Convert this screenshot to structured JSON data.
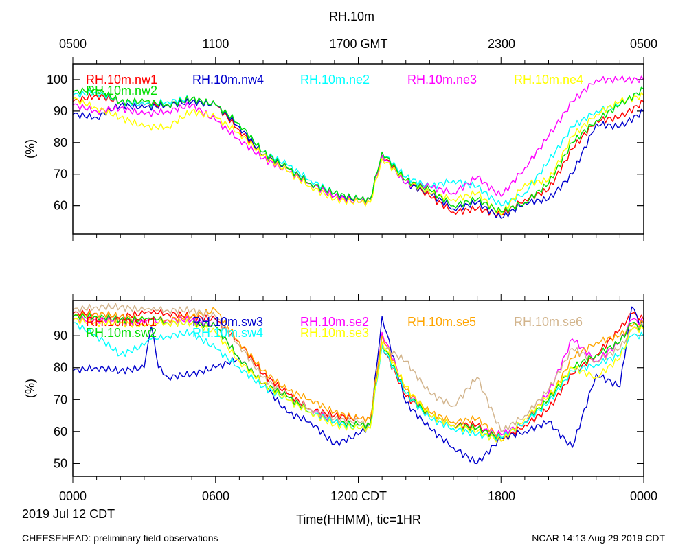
{
  "title": "RH.10m",
  "top_axis": {
    "labels": [
      "0500",
      "1100",
      "1700 GMT",
      "2300",
      "0500"
    ]
  },
  "bottom_axis": {
    "labels": [
      "0000",
      "0600",
      "1200 CDT",
      "1800",
      "0000"
    ]
  },
  "date_label": "2019 Jul 12 CDT",
  "xlabel": "Time(HHMM), tic=1HR",
  "footer_left": "CHEESEHEAD: preliminary field observations",
  "footer_right": "NCAR 14:13 Aug 29 2019 CDT",
  "chart_data": [
    {
      "type": "line",
      "ylabel": "(%)",
      "ylim": [
        51,
        105
      ],
      "yticks": [
        60,
        70,
        80,
        90,
        100
      ],
      "xlim": [
        0,
        24
      ],
      "x": [
        0,
        1,
        2,
        3,
        4,
        5,
        6,
        7,
        8,
        9,
        10,
        11,
        12,
        12.5,
        13,
        14,
        15,
        16,
        17,
        18,
        19,
        20,
        21,
        22,
        23,
        24
      ],
      "series": [
        {
          "name": "RH.10m.nw1",
          "color": "#ff0000",
          "values": [
            93,
            95,
            93,
            92,
            92,
            94,
            92,
            84,
            76,
            72,
            67,
            63,
            62,
            62,
            76,
            68,
            63,
            58,
            59,
            57,
            62,
            65,
            78,
            87,
            88,
            93
          ]
        },
        {
          "name": "RH.10m.nw4",
          "color": "#0000cd",
          "values": [
            89,
            88,
            92,
            91,
            92,
            93,
            92,
            85,
            76,
            72,
            67,
            63,
            62,
            62,
            76,
            67,
            64,
            59,
            61,
            56,
            61,
            62,
            70,
            86,
            85,
            90
          ]
        },
        {
          "name": "RH.10m.ne2",
          "color": "#00ffff",
          "values": [
            95,
            96,
            93,
            92,
            93,
            94,
            92,
            86,
            77,
            73,
            68,
            64,
            62,
            62,
            77,
            69,
            66,
            68,
            66,
            60,
            64,
            74,
            85,
            90,
            92,
            97
          ]
        },
        {
          "name": "RH.10m.ne3",
          "color": "#ff00ff",
          "values": [
            92,
            90,
            91,
            89,
            90,
            92,
            87,
            81,
            75,
            71,
            67,
            63,
            61,
            62,
            76,
            67,
            66,
            64,
            69,
            63,
            72,
            82,
            93,
            100,
            100,
            100
          ]
        },
        {
          "name": "RH.10m.ne4",
          "color": "#ffff00",
          "values": [
            94,
            91,
            88,
            85,
            85,
            90,
            88,
            83,
            76,
            71,
            66,
            62,
            61,
            61,
            75,
            68,
            64,
            62,
            64,
            57,
            67,
            68,
            82,
            89,
            93,
            95
          ]
        },
        {
          "name": "RH.10m.nw2",
          "color": "#00dd00",
          "values": [
            96,
            97,
            93,
            93,
            92,
            94,
            92,
            86,
            77,
            72,
            67,
            64,
            62,
            62,
            77,
            68,
            65,
            60,
            62,
            58,
            61,
            67,
            80,
            87,
            92,
            97
          ]
        }
      ]
    },
    {
      "type": "line",
      "ylabel": "(%)",
      "ylim": [
        46,
        101
      ],
      "yticks": [
        50,
        60,
        70,
        80,
        90
      ],
      "xlim": [
        0,
        24
      ],
      "x": [
        0,
        1,
        2,
        3,
        3.3,
        3.6,
        4,
        5,
        6,
        7,
        8,
        9,
        10,
        11,
        12,
        12.5,
        13,
        14,
        15,
        16,
        17,
        18,
        19,
        20,
        21,
        22,
        23,
        23.5,
        24
      ],
      "series": [
        {
          "name": "RH.10m.sw1",
          "color": "#ff0000",
          "values": [
            97,
            97,
            96,
            97,
            97,
            97,
            97,
            96,
            95,
            88,
            78,
            72,
            67,
            65,
            64,
            64,
            87,
            71,
            65,
            62,
            62,
            57,
            62,
            67,
            78,
            84,
            92,
            97,
            95
          ]
        },
        {
          "name": "RH.10m.sw3",
          "color": "#0000cd",
          "values": [
            79,
            80,
            79,
            80,
            93,
            80,
            77,
            78,
            80,
            83,
            75,
            66,
            63,
            56,
            59,
            62,
            96,
            69,
            61,
            55,
            50,
            58,
            60,
            63,
            55,
            78,
            74,
            99,
            92
          ]
        },
        {
          "name": "RH.10m.se2",
          "color": "#ff00ff",
          "values": [
            95,
            95,
            95,
            94,
            95,
            94,
            95,
            95,
            93,
            83,
            75,
            71,
            67,
            63,
            62,
            62,
            91,
            73,
            65,
            62,
            61,
            59,
            63,
            72,
            89,
            82,
            88,
            95,
            94
          ]
        },
        {
          "name": "RH.10m.se5",
          "color": "#ffa500",
          "values": [
            96,
            97,
            96,
            95,
            95,
            95,
            95,
            96,
            98,
            88,
            79,
            73,
            70,
            66,
            64,
            64,
            90,
            73,
            66,
            63,
            64,
            58,
            63,
            70,
            83,
            88,
            90,
            93,
            94
          ]
        },
        {
          "name": "RH.10m.se6",
          "color": "#d2b48c",
          "values": [
            98,
            99,
            99,
            98,
            98,
            98,
            98,
            98,
            96,
            87,
            77,
            71,
            67,
            64,
            63,
            62,
            87,
            82,
            72,
            68,
            77,
            60,
            65,
            73,
            86,
            82,
            86,
            92,
            93
          ]
        },
        {
          "name": "RH.10m.sw2",
          "color": "#00dd00",
          "values": [
            96,
            96,
            95,
            95,
            95,
            95,
            94,
            94,
            93,
            83,
            75,
            71,
            66,
            63,
            62,
            62,
            88,
            72,
            65,
            62,
            61,
            58,
            63,
            70,
            80,
            84,
            88,
            94,
            92
          ]
        },
        {
          "name": "RH.10m.sw4",
          "color": "#00ffff",
          "values": [
            94,
            90,
            84,
            87,
            89,
            89,
            90,
            91,
            86,
            80,
            74,
            70,
            66,
            63,
            61,
            61,
            87,
            72,
            64,
            61,
            59,
            58,
            63,
            69,
            79,
            81,
            84,
            90,
            90
          ]
        },
        {
          "name": "RH.10m.se3",
          "color": "#ffff00",
          "values": [
            95,
            94,
            94,
            93,
            93,
            94,
            94,
            94,
            91,
            82,
            75,
            70,
            66,
            62,
            61,
            61,
            88,
            74,
            65,
            62,
            60,
            57,
            64,
            71,
            80,
            77,
            83,
            92,
            92
          ]
        }
      ]
    }
  ]
}
